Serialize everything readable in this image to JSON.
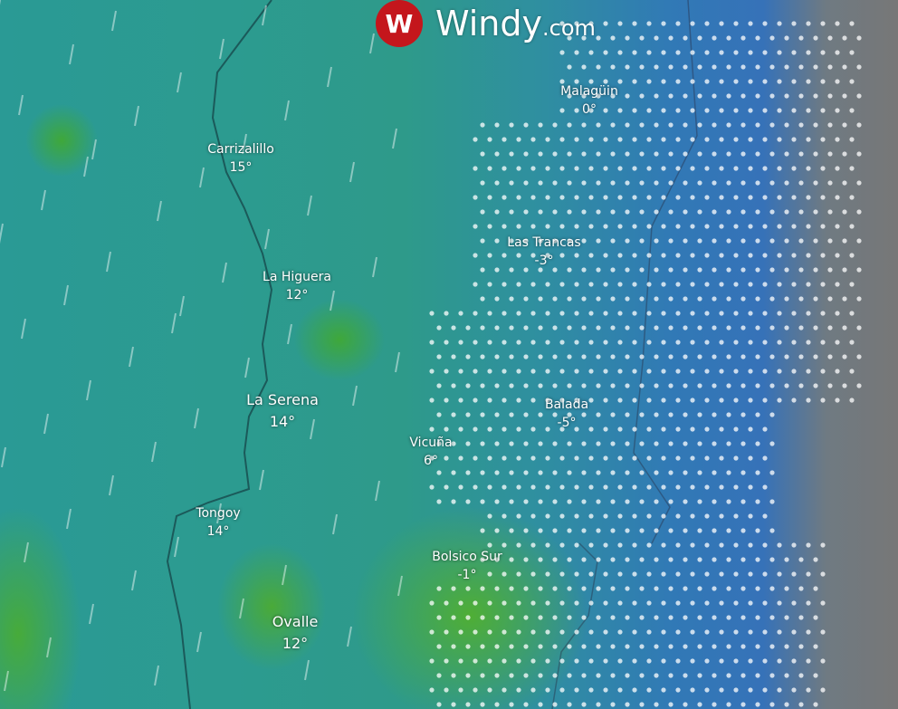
{
  "brand": {
    "name": "Windy",
    "suffix": ".com",
    "logo_color": "#c4161c"
  },
  "cities": [
    {
      "name": "Malagüin",
      "temp": "0°"
    },
    {
      "name": "Carrizalillo",
      "temp": "15°"
    },
    {
      "name": "Las Trancas",
      "temp": "-3°"
    },
    {
      "name": "La Higuera",
      "temp": "12°"
    },
    {
      "name": "La Serena",
      "temp": "14°"
    },
    {
      "name": "Balada",
      "temp": "-5°"
    },
    {
      "name": "Vicuña",
      "temp": "6°"
    },
    {
      "name": "Tongoy",
      "temp": "14°"
    },
    {
      "name": "Bolsico Sur",
      "temp": "-1°"
    },
    {
      "name": "Ovalle",
      "temp": "12°"
    }
  ],
  "colors": {
    "ocean": "#2a9a95",
    "snow_zone": "#3179b6",
    "land_gray": "#777777"
  }
}
